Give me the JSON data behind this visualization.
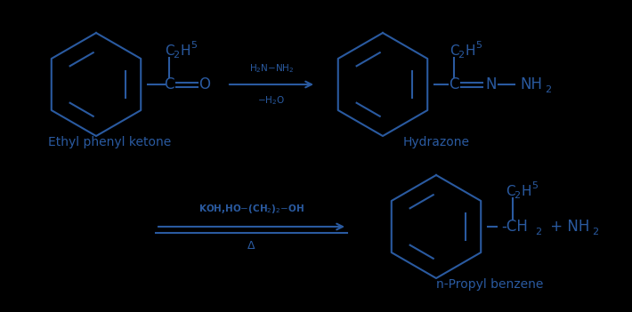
{
  "bg_color": "#000000",
  "text_color": "#2a5aa0",
  "fig_width": 7.1,
  "fig_height": 3.51,
  "dpi": 100,
  "label_ethyl_phenyl_ketone": "Ethyl phenyl ketone",
  "label_hydrazone": "Hydrazone",
  "label_npropyl_benzene": "n-Propyl benzene",
  "arrow1_label_top": "H$_2$N$-$NH$_2$",
  "arrow1_label_bottom": "$-$H$_2$O",
  "arrow2_label_top": "KOH,HO$-$(CH$_2$)$_2$$-$OH",
  "arrow2_label_bottom": "Δ"
}
